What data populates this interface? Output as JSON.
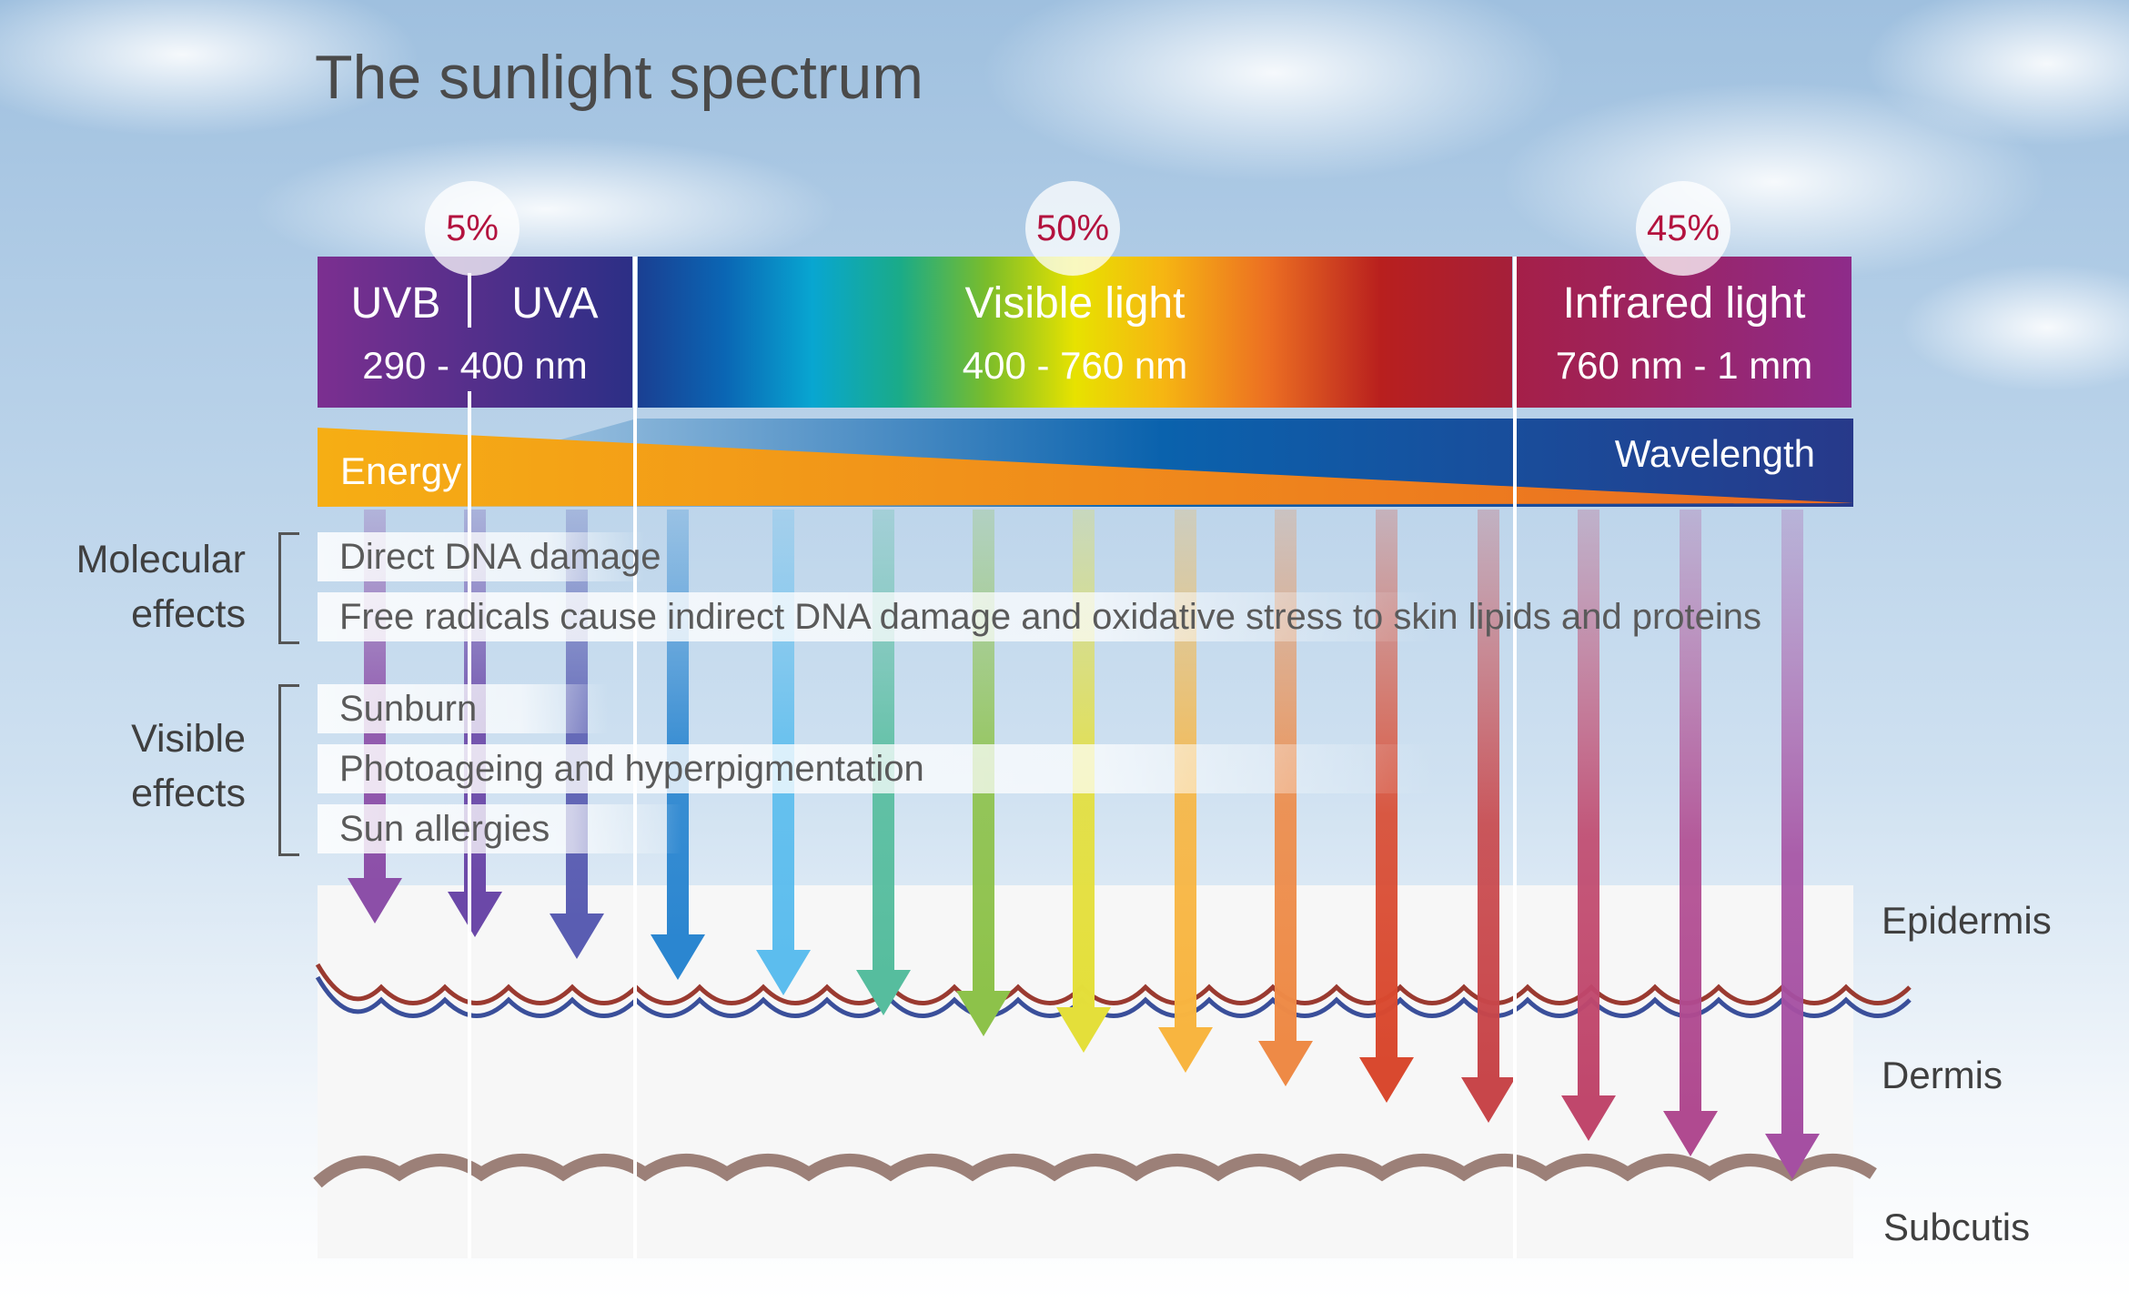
{
  "title": "The sunlight spectrum",
  "spectrum": {
    "uv": {
      "percent": "5%",
      "uvb_label": "UVB",
      "uva_label": "UVA",
      "range": "290 - 400 nm",
      "color": "#5a2f95"
    },
    "visible": {
      "percent": "50%",
      "label": "Visible light",
      "range": "400 - 760 nm"
    },
    "infrared": {
      "percent": "45%",
      "label": "Infrared light",
      "range": "760 nm - 1 mm",
      "color": "#9a2a6a"
    }
  },
  "gradient_band": {
    "energy_label": "Energy",
    "wavelength_label": "Wavelength",
    "energy_color": "#f5a516",
    "wavelength_color": "#233f8f"
  },
  "molecular_effects": {
    "label_line1": "Molecular",
    "label_line2": "effects",
    "items": [
      "Direct DNA damage",
      "Free radicals cause indirect DNA damage and oxidative stress to skin lipids and proteins"
    ]
  },
  "visible_effects": {
    "label_line1": "Visible",
    "label_line2": "effects",
    "items": [
      "Sunburn",
      "Photoageing and hyperpigmentation",
      "Sun allergies"
    ]
  },
  "skin_layers": [
    "Epidermis",
    "Dermis",
    "Subcutis"
  ],
  "arrow_colors": [
    "#8c4fa8",
    "#6b48a8",
    "#5a5db2",
    "#2b86d0",
    "#5cbdee",
    "#56bd9e",
    "#8dc24a",
    "#e4df3a",
    "#f8b540",
    "#ee8a46",
    "#d9492f",
    "#c8464a",
    "#c0476c",
    "#b04a90",
    "#a54fa2"
  ],
  "accent_color": "#b3123e"
}
